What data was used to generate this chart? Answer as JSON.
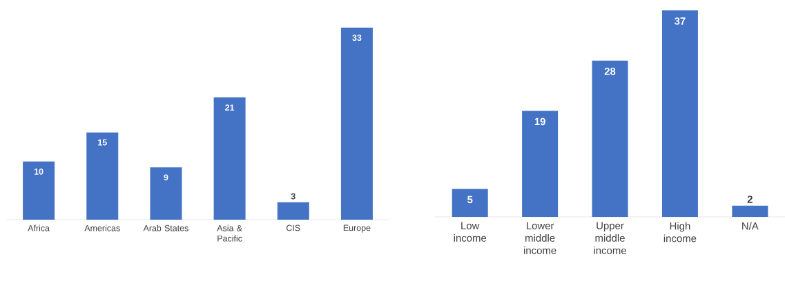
{
  "chart_data": [
    {
      "type": "bar",
      "categories": [
        "Africa",
        "Americas",
        "Arab States",
        "Asia & Pacific",
        "CIS",
        "Europe"
      ],
      "values": [
        10,
        15,
        9,
        21,
        3,
        33
      ],
      "color": "#4472c4",
      "data_labels": true
    },
    {
      "type": "bar",
      "categories": [
        "Low income",
        "Lower middle income",
        "Upper middle income",
        "High income",
        "N/A"
      ],
      "values": [
        5,
        19,
        28,
        37,
        2
      ],
      "color": "#4472c4",
      "data_labels": true
    }
  ]
}
